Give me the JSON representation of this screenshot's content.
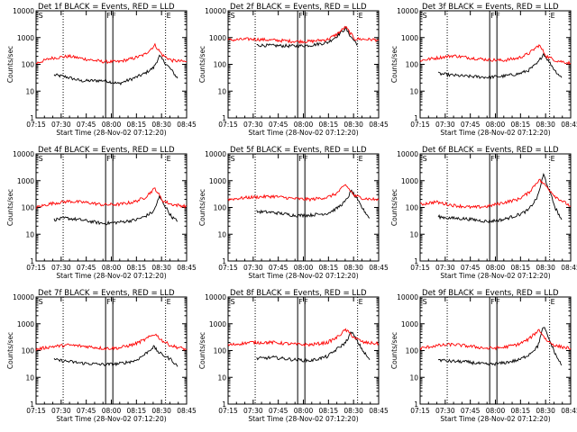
{
  "colors": {
    "events": "#000000",
    "lld": "#ff0000",
    "background": "#ffffff"
  },
  "chart_data": [
    {
      "type": "line",
      "title": "Det 1f BLACK = Events, RED = LLD",
      "xlabel": "Start Time (28-Nov-02 07:12:20)",
      "ylabel": "Counts/sec",
      "xticks": [
        "07:15",
        "07:30",
        "07:45",
        "08:00",
        "08:15",
        "08:30",
        "08:45"
      ],
      "yticks": [
        "1",
        "10",
        "100",
        "1000",
        "10000"
      ],
      "yscale": "log",
      "ylim": [
        1,
        10000
      ],
      "markers": [
        "S",
        "F",
        "F",
        "E"
      ],
      "series": [
        {
          "name": "Events",
          "color": "#000000",
          "x": [
            0.12,
            0.2,
            0.3,
            0.45,
            0.55,
            0.66,
            0.72,
            0.78,
            0.82,
            0.9,
            0.94
          ],
          "y": [
            40,
            34,
            24,
            25,
            19,
            32,
            45,
            75,
            200,
            60,
            30
          ]
        },
        {
          "name": "LLD",
          "color": "#ff0000",
          "x": [
            0,
            0.1,
            0.22,
            0.35,
            0.45,
            0.55,
            0.65,
            0.72,
            0.79,
            0.84,
            0.9,
            1.0
          ],
          "y": [
            110,
            170,
            200,
            150,
            125,
            125,
            170,
            230,
            520,
            220,
            140,
            125
          ]
        }
      ]
    },
    {
      "type": "line",
      "title": "Det 2f BLACK = Events, RED = LLD",
      "xlabel": "Start Time (28-Nov-02 07:12:20)",
      "ylabel": "Counts/sec",
      "xticks": [
        "07:15",
        "07:30",
        "07:45",
        "08:00",
        "08:15",
        "08:30",
        "08:45"
      ],
      "yticks": [
        "1",
        "10",
        "100",
        "1000",
        "10000"
      ],
      "yscale": "log",
      "ylim": [
        1,
        10000
      ],
      "markers": [
        "S",
        "F",
        "F",
        "E"
      ],
      "series": [
        {
          "name": "Events",
          "color": "#000000",
          "x": [
            0.19,
            0.3,
            0.45,
            0.55,
            0.66,
            0.72,
            0.78,
            0.82,
            0.86
          ],
          "y": [
            520,
            500,
            480,
            520,
            650,
            1100,
            2200,
            1000,
            550
          ]
        },
        {
          "name": "LLD",
          "color": "#ff0000",
          "x": [
            0,
            0.15,
            0.3,
            0.45,
            0.55,
            0.66,
            0.72,
            0.78,
            0.84,
            1.0
          ],
          "y": [
            800,
            880,
            800,
            720,
            720,
            850,
            1300,
            2500,
            900,
            820
          ]
        }
      ]
    },
    {
      "type": "line",
      "title": "Det 3f BLACK = Events, RED = LLD",
      "xlabel": "Start Time (28-Nov-02 07:12:20)",
      "ylabel": "Counts/sec",
      "xticks": [
        "07:15",
        "07:30",
        "07:45",
        "08:00",
        "08:15",
        "08:30",
        "08:45"
      ],
      "yticks": [
        "1",
        "10",
        "100",
        "1000",
        "10000"
      ],
      "yscale": "log",
      "ylim": [
        1,
        10000
      ],
      "markers": [
        "S",
        "F",
        "F",
        "E"
      ],
      "series": [
        {
          "name": "Events",
          "color": "#000000",
          "x": [
            0.12,
            0.2,
            0.3,
            0.45,
            0.55,
            0.66,
            0.72,
            0.78,
            0.82,
            0.9,
            0.94
          ],
          "y": [
            45,
            40,
            36,
            33,
            36,
            45,
            60,
            110,
            250,
            55,
            32
          ]
        },
        {
          "name": "LLD",
          "color": "#ff0000",
          "x": [
            0,
            0.1,
            0.22,
            0.35,
            0.45,
            0.55,
            0.65,
            0.72,
            0.79,
            0.84,
            0.9,
            1.0
          ],
          "y": [
            140,
            170,
            210,
            170,
            150,
            140,
            170,
            250,
            520,
            200,
            140,
            110
          ]
        }
      ]
    },
    {
      "type": "line",
      "title": "Det 4f BLACK = Events, RED = LLD",
      "xlabel": "Start Time (28-Nov-02 07:12:20)",
      "ylabel": "Counts/sec",
      "xticks": [
        "07:15",
        "07:30",
        "07:45",
        "08:00",
        "08:15",
        "08:30",
        "08:45"
      ],
      "yticks": [
        "1",
        "10",
        "100",
        "1000",
        "10000"
      ],
      "yscale": "log",
      "ylim": [
        1,
        10000
      ],
      "markers": [
        "S",
        "F",
        "F",
        "E"
      ],
      "series": [
        {
          "name": "Events",
          "color": "#000000",
          "x": [
            0.12,
            0.2,
            0.3,
            0.45,
            0.55,
            0.66,
            0.72,
            0.78,
            0.82,
            0.9,
            0.94
          ],
          "y": [
            35,
            40,
            34,
            25,
            28,
            34,
            45,
            70,
            250,
            45,
            30
          ]
        },
        {
          "name": "LLD",
          "color": "#ff0000",
          "x": [
            0,
            0.1,
            0.22,
            0.35,
            0.45,
            0.55,
            0.65,
            0.72,
            0.79,
            0.84,
            0.9,
            1.0
          ],
          "y": [
            100,
            140,
            170,
            150,
            125,
            130,
            160,
            230,
            520,
            180,
            130,
            110
          ]
        }
      ]
    },
    {
      "type": "line",
      "title": "Det 5f BLACK = Events, RED = LLD",
      "xlabel": "Start Time (28-Nov-02 07:12:20)",
      "ylabel": "Counts/sec",
      "xticks": [
        "07:15",
        "07:30",
        "07:45",
        "08:00",
        "08:15",
        "08:30",
        "08:45"
      ],
      "yticks": [
        "1",
        "10",
        "100",
        "1000",
        "10000"
      ],
      "yscale": "log",
      "ylim": [
        1,
        10000
      ],
      "markers": [
        "S",
        "F",
        "F",
        "E"
      ],
      "series": [
        {
          "name": "Events",
          "color": "#000000",
          "x": [
            0.19,
            0.3,
            0.45,
            0.55,
            0.66,
            0.72,
            0.78,
            0.82,
            0.9,
            0.94
          ],
          "y": [
            70,
            65,
            50,
            52,
            60,
            90,
            170,
            420,
            80,
            40
          ]
        },
        {
          "name": "LLD",
          "color": "#ff0000",
          "x": [
            0,
            0.15,
            0.3,
            0.45,
            0.55,
            0.66,
            0.72,
            0.78,
            0.84,
            0.9,
            1.0
          ],
          "y": [
            200,
            240,
            260,
            210,
            200,
            240,
            330,
            700,
            270,
            220,
            190
          ]
        }
      ]
    },
    {
      "type": "line",
      "title": "Det 6f BLACK = Events, RED = LLD",
      "xlabel": "Start Time (28-Nov-02 07:12:20)",
      "ylabel": "Counts/sec",
      "xticks": [
        "07:15",
        "07:30",
        "07:45",
        "08:00",
        "08:15",
        "08:30",
        "08:45"
      ],
      "yticks": [
        "1",
        "10",
        "100",
        "1000",
        "10000"
      ],
      "yscale": "log",
      "ylim": [
        1,
        10000
      ],
      "markers": [
        "S",
        "F",
        "F",
        "E"
      ],
      "series": [
        {
          "name": "Events",
          "color": "#000000",
          "x": [
            0.12,
            0.2,
            0.3,
            0.45,
            0.55,
            0.66,
            0.72,
            0.78,
            0.82,
            0.9,
            0.94
          ],
          "y": [
            45,
            40,
            38,
            30,
            35,
            55,
            80,
            250,
            1700,
            90,
            35
          ]
        },
        {
          "name": "LLD",
          "color": "#ff0000",
          "x": [
            0,
            0.1,
            0.22,
            0.35,
            0.45,
            0.55,
            0.65,
            0.72,
            0.79,
            0.84,
            0.9,
            1.0
          ],
          "y": [
            130,
            160,
            120,
            100,
            110,
            150,
            200,
            350,
            1100,
            600,
            250,
            110
          ]
        }
      ]
    },
    {
      "type": "line",
      "title": "Det 7f BLACK = Events, RED = LLD",
      "xlabel": "Start Time (28-Nov-02 07:12:20)",
      "ylabel": "Counts/sec",
      "xticks": [
        "07:15",
        "07:30",
        "07:45",
        "08:00",
        "08:15",
        "08:30",
        "08:45"
      ],
      "yticks": [
        "1",
        "10",
        "100",
        "1000",
        "10000"
      ],
      "yscale": "log",
      "ylim": [
        1,
        10000
      ],
      "markers": [
        "S",
        "F",
        "F",
        "E"
      ],
      "series": [
        {
          "name": "Events",
          "color": "#000000",
          "x": [
            0.12,
            0.2,
            0.3,
            0.45,
            0.55,
            0.66,
            0.72,
            0.78,
            0.82,
            0.9,
            0.94
          ],
          "y": [
            45,
            40,
            34,
            30,
            32,
            42,
            70,
            140,
            80,
            45,
            25
          ]
        },
        {
          "name": "LLD",
          "color": "#ff0000",
          "x": [
            0,
            0.1,
            0.22,
            0.35,
            0.45,
            0.55,
            0.65,
            0.72,
            0.79,
            0.84,
            0.9,
            1.0
          ],
          "y": [
            110,
            140,
            160,
            140,
            120,
            125,
            170,
            250,
            420,
            230,
            150,
            110
          ]
        }
      ]
    },
    {
      "type": "line",
      "title": "Det 8f BLACK = Events, RED = LLD",
      "xlabel": "Start Time (28-Nov-02 07:12:20)",
      "ylabel": "Counts/sec",
      "xticks": [
        "07:15",
        "07:30",
        "07:45",
        "08:00",
        "08:15",
        "08:30",
        "08:45"
      ],
      "yticks": [
        "1",
        "10",
        "100",
        "1000",
        "10000"
      ],
      "yscale": "log",
      "ylim": [
        1,
        10000
      ],
      "markers": [
        "S",
        "F",
        "F",
        "E"
      ],
      "series": [
        {
          "name": "Events",
          "color": "#000000",
          "x": [
            0.19,
            0.3,
            0.45,
            0.55,
            0.66,
            0.72,
            0.78,
            0.82,
            0.9,
            0.94
          ],
          "y": [
            50,
            55,
            45,
            42,
            60,
            110,
            200,
            500,
            90,
            45
          ]
        },
        {
          "name": "LLD",
          "color": "#ff0000",
          "x": [
            0,
            0.15,
            0.3,
            0.45,
            0.55,
            0.66,
            0.72,
            0.78,
            0.84,
            0.9,
            1.0
          ],
          "y": [
            160,
            200,
            200,
            170,
            165,
            200,
            300,
            600,
            300,
            200,
            180
          ]
        }
      ]
    },
    {
      "type": "line",
      "title": "Det 9f BLACK = Events, RED = LLD",
      "xlabel": "Start Time (28-Nov-02 07:12:20)",
      "ylabel": "Counts/sec",
      "xticks": [
        "07:15",
        "07:30",
        "07:45",
        "08:00",
        "08:15",
        "08:30",
        "08:45"
      ],
      "yticks": [
        "1",
        "10",
        "100",
        "1000",
        "10000"
      ],
      "yscale": "log",
      "ylim": [
        1,
        10000
      ],
      "markers": [
        "S",
        "F",
        "F",
        "E"
      ],
      "series": [
        {
          "name": "Events",
          "color": "#000000",
          "x": [
            0.12,
            0.2,
            0.3,
            0.45,
            0.55,
            0.66,
            0.72,
            0.78,
            0.82,
            0.9,
            0.94
          ],
          "y": [
            45,
            40,
            38,
            30,
            34,
            45,
            70,
            140,
            800,
            70,
            28
          ]
        },
        {
          "name": "LLD",
          "color": "#ff0000",
          "x": [
            0,
            0.1,
            0.22,
            0.35,
            0.45,
            0.55,
            0.65,
            0.72,
            0.79,
            0.84,
            0.9,
            1.0
          ],
          "y": [
            120,
            150,
            170,
            140,
            120,
            130,
            170,
            260,
            600,
            240,
            150,
            120
          ]
        }
      ]
    }
  ]
}
